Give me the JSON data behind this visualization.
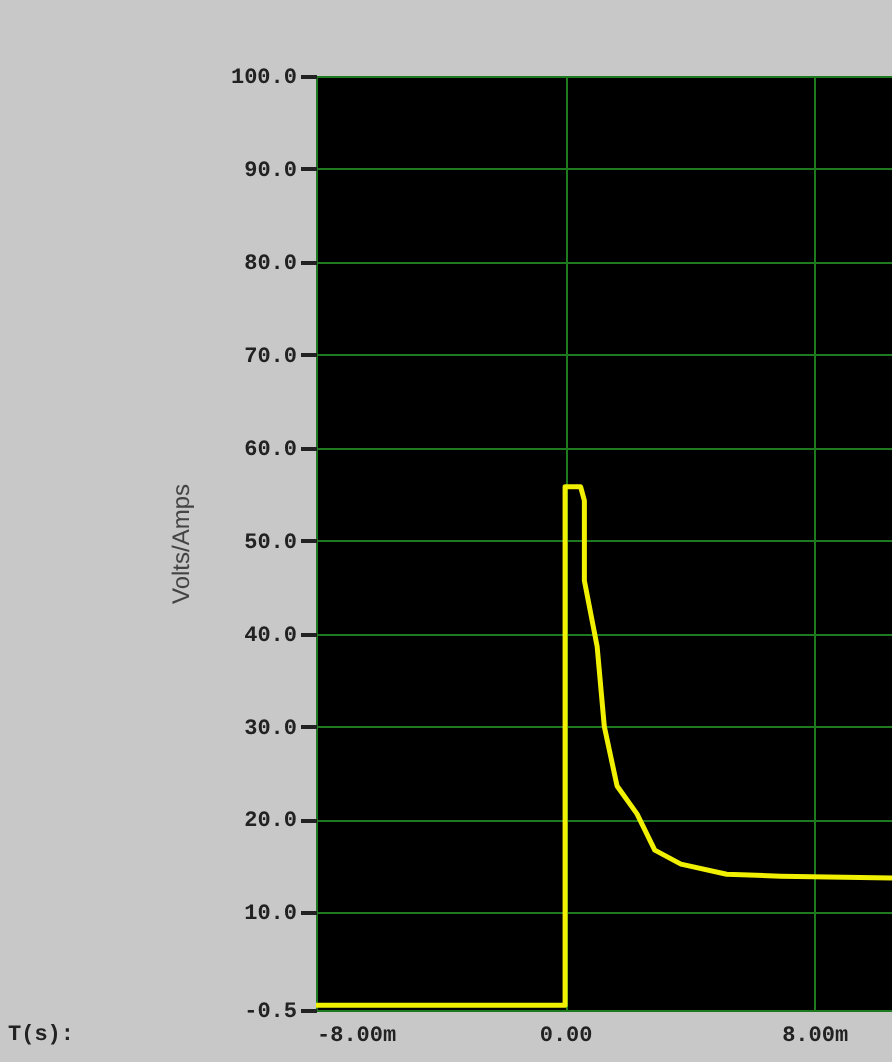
{
  "chart_data": {
    "type": "line",
    "annotations": [
      "T(s):"
    ],
    "ylabel": "Volts/Amps",
    "x": [
      -8,
      0,
      0,
      0.5,
      0.62,
      0.62,
      1.03,
      1.26,
      1.67,
      2.31,
      2.88,
      3.72,
      5.19,
      6.92,
      10.5
    ],
    "series": [
      {
        "color": "#f0f000",
        "values": [
          0,
          0,
          55.8,
          55.8,
          54.3,
          45.7,
          38.6,
          30.0,
          23.6,
          20.6,
          16.7,
          15.2,
          14.1,
          13.9,
          13.7
        ]
      }
    ],
    "xlim": [
      -8,
      10.5
    ],
    "xticks": [
      {
        "value": -8,
        "label": "-8.00m"
      },
      {
        "value": 0,
        "label": "0.00"
      },
      {
        "value": 8,
        "label": "8.00m"
      }
    ],
    "ylim": [
      -0.5,
      100
    ],
    "yticks": [
      {
        "value": -0.5,
        "label": "-0.5"
      },
      {
        "value": 10,
        "label": "10.0"
      },
      {
        "value": 20,
        "label": "20.0"
      },
      {
        "value": 30,
        "label": "30.0"
      },
      {
        "value": 40,
        "label": "40.0"
      },
      {
        "value": 50,
        "label": "50.0"
      },
      {
        "value": 60,
        "label": "60.0"
      },
      {
        "value": 70,
        "label": "70.0"
      },
      {
        "value": 80,
        "label": "80.0"
      },
      {
        "value": 90,
        "label": "90.0"
      },
      {
        "value": 100,
        "label": "100.0"
      }
    ],
    "grid": true,
    "marker": "none",
    "line_style": "solid"
  }
}
